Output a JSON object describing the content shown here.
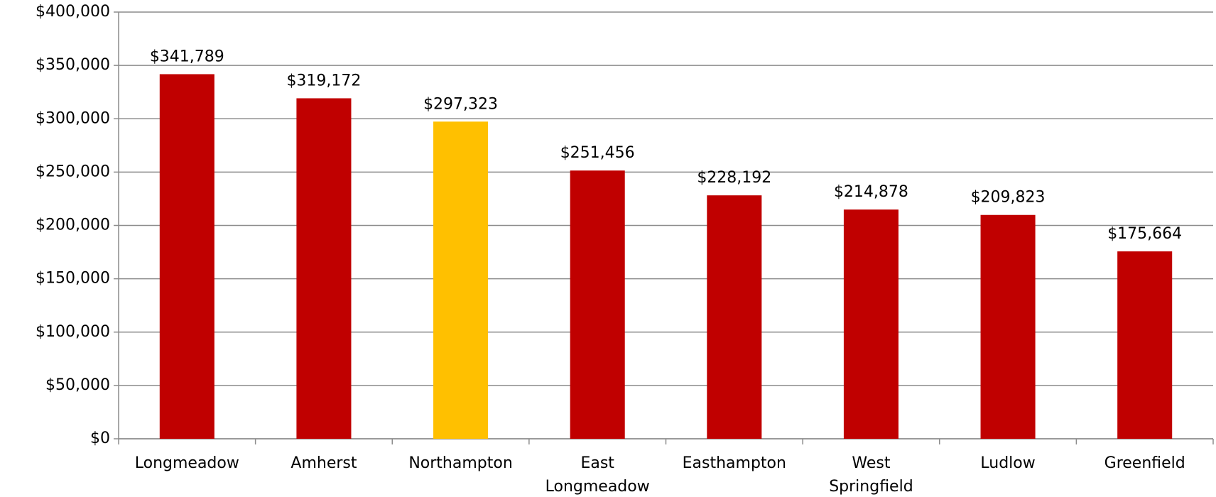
{
  "chart_data": {
    "type": "bar",
    "categories": [
      "Longmeadow",
      "Amherst",
      "Northampton",
      "East Longmeadow",
      "Easthampton",
      "West Springfield",
      "Ludlow",
      "Greenfield"
    ],
    "values": [
      341789,
      319172,
      297323,
      251456,
      228192,
      214878,
      209823,
      175664
    ],
    "value_labels": [
      "$341,789",
      "$319,172",
      "$297,323",
      "$251,456",
      "$228,192",
      "$214,878",
      "$209,823",
      "$175,664"
    ],
    "colors": [
      "#c00000",
      "#c00000",
      "#ffc000",
      "#c00000",
      "#c00000",
      "#c00000",
      "#c00000",
      "#c00000"
    ],
    "ylim": [
      0,
      400000
    ],
    "yticks": [
      {
        "value": 0,
        "label": "$0"
      },
      {
        "value": 50000,
        "label": "$50,000"
      },
      {
        "value": 100000,
        "label": "$100,000"
      },
      {
        "value": 150000,
        "label": "$150,000"
      },
      {
        "value": 200000,
        "label": "$200,000"
      },
      {
        "value": 250000,
        "label": "$250,000"
      },
      {
        "value": 300000,
        "label": "$300,000"
      },
      {
        "value": 350000,
        "label": "$350,000"
      },
      {
        "value": 400000,
        "label": "$400,000"
      }
    ],
    "grid": true
  }
}
